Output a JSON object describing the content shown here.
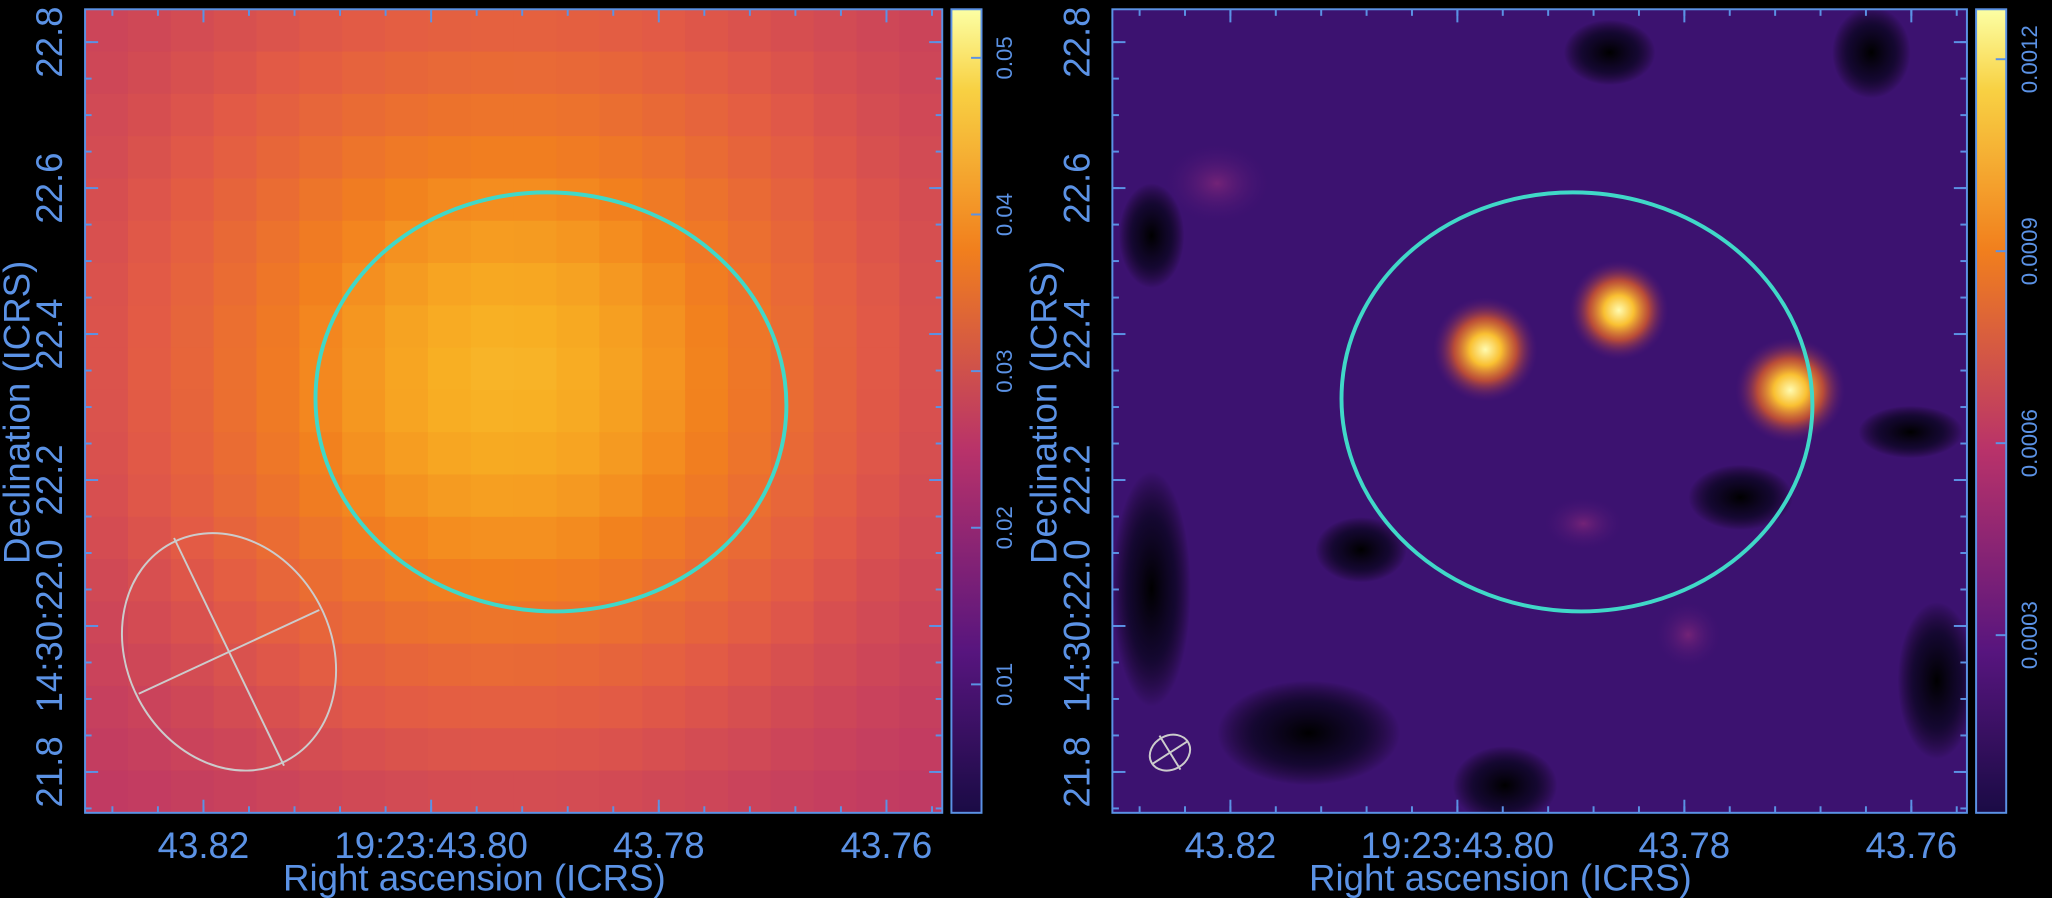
{
  "chart_data": [
    {
      "type": "image",
      "xlabel": "Right ascension (ICRS)",
      "ylabel": "Declination (ICRS)",
      "xlim": [
        43.8304,
        43.7551
      ],
      "xticks": [
        43.82,
        {
          "value": 43.8,
          "label": "19:23:43.80"
        },
        43.78,
        43.76
      ],
      "ylim": [
        21.744,
        22.845
      ],
      "yticks": [
        21.8,
        {
          "value": 22.0,
          "label": "14:30:22.0"
        },
        22.2,
        22.4,
        22.6,
        22.8
      ],
      "colorbar": {
        "lim": [
          0.0018,
          0.0531
        ],
        "ticks": [
          0.01,
          0.02,
          0.03,
          0.04,
          0.05
        ]
      }
    },
    {
      "type": "image",
      "xlabel": "Right ascension (ICRS)",
      "ylabel": "Declination (ICRS)",
      "xlim": [
        43.8304,
        43.7551
      ],
      "xticks": [
        43.82,
        {
          "value": 43.8,
          "label": "19:23:43.80"
        },
        43.78,
        43.76
      ],
      "ylim": [
        21.744,
        22.845
      ],
      "yticks": [
        21.8,
        {
          "value": 22.0,
          "label": "14:30:22.0"
        },
        22.2,
        22.4,
        22.6,
        22.8
      ],
      "colorbar": {
        "lim": [
          2.24e-05,
          0.001278
        ],
        "ticks": [
          0.0003,
          0.0006,
          0.0009,
          0.0012
        ]
      }
    }
  ]
}
